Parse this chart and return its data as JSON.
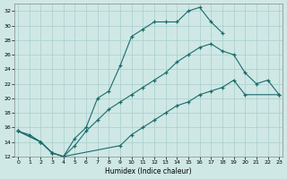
{
  "xlabel": "Humidex (Indice chaleur)",
  "bg_color": "#cfe8e5",
  "grid_color": "#a8cece",
  "line_color": "#1a6b6b",
  "xlim_min": -0.3,
  "xlim_max": 23.3,
  "ylim_min": 12,
  "ylim_max": 33,
  "xticks": [
    0,
    1,
    2,
    3,
    4,
    5,
    6,
    7,
    8,
    9,
    10,
    11,
    12,
    13,
    14,
    15,
    16,
    17,
    18,
    19,
    20,
    21,
    22,
    23
  ],
  "yticks": [
    12,
    14,
    16,
    18,
    20,
    22,
    24,
    26,
    28,
    30,
    32
  ],
  "curve1_x": [
    0,
    1,
    2,
    3,
    4,
    5,
    6,
    7,
    8,
    9,
    10,
    11,
    12,
    13,
    14,
    15,
    16,
    17,
    18
  ],
  "curve1_y": [
    15.5,
    15.0,
    14.0,
    12.5,
    12.0,
    14.5,
    16.0,
    20.0,
    21.0,
    24.5,
    28.5,
    29.5,
    30.5,
    30.5,
    30.5,
    32.0,
    32.5,
    30.5,
    29.0
  ],
  "curve2_x": [
    0,
    2,
    3,
    4,
    5,
    6,
    7,
    8,
    9,
    10,
    11,
    12,
    13,
    14,
    15,
    16,
    17,
    18,
    19,
    20,
    21,
    22,
    23
  ],
  "curve2_y": [
    15.5,
    14.0,
    12.5,
    12.0,
    13.5,
    15.5,
    17.0,
    18.5,
    19.5,
    20.5,
    21.5,
    22.5,
    23.5,
    25.0,
    26.0,
    27.0,
    27.5,
    26.5,
    26.0,
    23.5,
    22.0,
    22.5,
    20.5
  ],
  "curve3_x": [
    0,
    2,
    3,
    4,
    9,
    10,
    11,
    12,
    13,
    14,
    15,
    16,
    17,
    18,
    19,
    20,
    23
  ],
  "curve3_y": [
    15.5,
    14.0,
    12.5,
    12.0,
    13.5,
    15.0,
    16.0,
    17.0,
    18.0,
    19.0,
    19.5,
    20.5,
    21.0,
    21.5,
    22.5,
    20.5,
    20.5
  ]
}
